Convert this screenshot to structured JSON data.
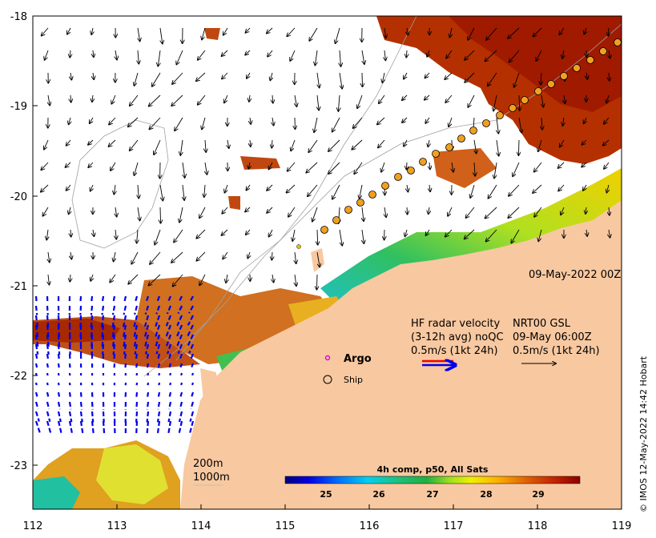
{
  "map": {
    "x_ticks": [
      "112",
      "113",
      "114",
      "115",
      "116",
      "117",
      "118",
      "119"
    ],
    "y_ticks": [
      "-18",
      "-19",
      "-20",
      "-21",
      "-22",
      "-23"
    ],
    "date_label": "09-May-2022 00Z",
    "legend": {
      "radar_title": "HF radar velocity",
      "radar_avg": "(3-12h avg) noQC",
      "radar_scale": "0.5m/s (1kt 24h)",
      "gsl_title": "NRT00 GSL",
      "gsl_time": "09-May 06:00Z",
      "gsl_scale": "0.5m/s (1kt 24h)",
      "argo": "Argo",
      "ship": "Ship"
    },
    "contours": {
      "c200": "200m",
      "c1000": "1000m"
    },
    "colorbar": {
      "title": "4h comp, p50, All Sats",
      "ticks": [
        "25",
        "26",
        "27",
        "28",
        "29"
      ],
      "colors": [
        "#00007f",
        "#0000ff",
        "#0060ff",
        "#00c0ff",
        "#20e0a0",
        "#20c060",
        "#80e020",
        "#f0f000",
        "#ffc000",
        "#ff9000",
        "#e06000",
        "#c03000",
        "#900000"
      ]
    },
    "credit": "© IMOS 12-May-2022 14:42 Hobart",
    "colors": {
      "land": "#f8c8a0",
      "radar": "#0000ee",
      "sst_warm": "#b83000"
    }
  }
}
